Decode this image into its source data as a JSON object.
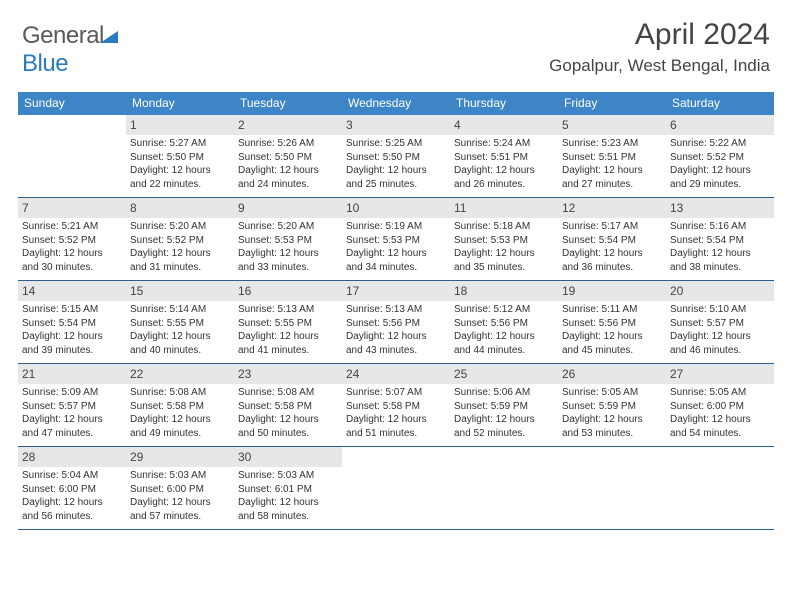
{
  "brand": {
    "part1": "General",
    "part2": "Blue"
  },
  "header": {
    "title": "April 2024",
    "location": "Gopalpur, West Bengal, India"
  },
  "colors": {
    "header_bg": "#3d85c6",
    "rule": "#2b5f8c",
    "daynum_bg": "#e7e7e7",
    "text": "#333333"
  },
  "dow": [
    "Sunday",
    "Monday",
    "Tuesday",
    "Wednesday",
    "Thursday",
    "Friday",
    "Saturday"
  ],
  "weeks": [
    [
      {
        "num": "",
        "sunrise": "",
        "sunset": "",
        "daylight1": "",
        "daylight2": ""
      },
      {
        "num": "1",
        "sunrise": "Sunrise: 5:27 AM",
        "sunset": "Sunset: 5:50 PM",
        "daylight1": "Daylight: 12 hours",
        "daylight2": "and 22 minutes."
      },
      {
        "num": "2",
        "sunrise": "Sunrise: 5:26 AM",
        "sunset": "Sunset: 5:50 PM",
        "daylight1": "Daylight: 12 hours",
        "daylight2": "and 24 minutes."
      },
      {
        "num": "3",
        "sunrise": "Sunrise: 5:25 AM",
        "sunset": "Sunset: 5:50 PM",
        "daylight1": "Daylight: 12 hours",
        "daylight2": "and 25 minutes."
      },
      {
        "num": "4",
        "sunrise": "Sunrise: 5:24 AM",
        "sunset": "Sunset: 5:51 PM",
        "daylight1": "Daylight: 12 hours",
        "daylight2": "and 26 minutes."
      },
      {
        "num": "5",
        "sunrise": "Sunrise: 5:23 AM",
        "sunset": "Sunset: 5:51 PM",
        "daylight1": "Daylight: 12 hours",
        "daylight2": "and 27 minutes."
      },
      {
        "num": "6",
        "sunrise": "Sunrise: 5:22 AM",
        "sunset": "Sunset: 5:52 PM",
        "daylight1": "Daylight: 12 hours",
        "daylight2": "and 29 minutes."
      }
    ],
    [
      {
        "num": "7",
        "sunrise": "Sunrise: 5:21 AM",
        "sunset": "Sunset: 5:52 PM",
        "daylight1": "Daylight: 12 hours",
        "daylight2": "and 30 minutes."
      },
      {
        "num": "8",
        "sunrise": "Sunrise: 5:20 AM",
        "sunset": "Sunset: 5:52 PM",
        "daylight1": "Daylight: 12 hours",
        "daylight2": "and 31 minutes."
      },
      {
        "num": "9",
        "sunrise": "Sunrise: 5:20 AM",
        "sunset": "Sunset: 5:53 PM",
        "daylight1": "Daylight: 12 hours",
        "daylight2": "and 33 minutes."
      },
      {
        "num": "10",
        "sunrise": "Sunrise: 5:19 AM",
        "sunset": "Sunset: 5:53 PM",
        "daylight1": "Daylight: 12 hours",
        "daylight2": "and 34 minutes."
      },
      {
        "num": "11",
        "sunrise": "Sunrise: 5:18 AM",
        "sunset": "Sunset: 5:53 PM",
        "daylight1": "Daylight: 12 hours",
        "daylight2": "and 35 minutes."
      },
      {
        "num": "12",
        "sunrise": "Sunrise: 5:17 AM",
        "sunset": "Sunset: 5:54 PM",
        "daylight1": "Daylight: 12 hours",
        "daylight2": "and 36 minutes."
      },
      {
        "num": "13",
        "sunrise": "Sunrise: 5:16 AM",
        "sunset": "Sunset: 5:54 PM",
        "daylight1": "Daylight: 12 hours",
        "daylight2": "and 38 minutes."
      }
    ],
    [
      {
        "num": "14",
        "sunrise": "Sunrise: 5:15 AM",
        "sunset": "Sunset: 5:54 PM",
        "daylight1": "Daylight: 12 hours",
        "daylight2": "and 39 minutes."
      },
      {
        "num": "15",
        "sunrise": "Sunrise: 5:14 AM",
        "sunset": "Sunset: 5:55 PM",
        "daylight1": "Daylight: 12 hours",
        "daylight2": "and 40 minutes."
      },
      {
        "num": "16",
        "sunrise": "Sunrise: 5:13 AM",
        "sunset": "Sunset: 5:55 PM",
        "daylight1": "Daylight: 12 hours",
        "daylight2": "and 41 minutes."
      },
      {
        "num": "17",
        "sunrise": "Sunrise: 5:13 AM",
        "sunset": "Sunset: 5:56 PM",
        "daylight1": "Daylight: 12 hours",
        "daylight2": "and 43 minutes."
      },
      {
        "num": "18",
        "sunrise": "Sunrise: 5:12 AM",
        "sunset": "Sunset: 5:56 PM",
        "daylight1": "Daylight: 12 hours",
        "daylight2": "and 44 minutes."
      },
      {
        "num": "19",
        "sunrise": "Sunrise: 5:11 AM",
        "sunset": "Sunset: 5:56 PM",
        "daylight1": "Daylight: 12 hours",
        "daylight2": "and 45 minutes."
      },
      {
        "num": "20",
        "sunrise": "Sunrise: 5:10 AM",
        "sunset": "Sunset: 5:57 PM",
        "daylight1": "Daylight: 12 hours",
        "daylight2": "and 46 minutes."
      }
    ],
    [
      {
        "num": "21",
        "sunrise": "Sunrise: 5:09 AM",
        "sunset": "Sunset: 5:57 PM",
        "daylight1": "Daylight: 12 hours",
        "daylight2": "and 47 minutes."
      },
      {
        "num": "22",
        "sunrise": "Sunrise: 5:08 AM",
        "sunset": "Sunset: 5:58 PM",
        "daylight1": "Daylight: 12 hours",
        "daylight2": "and 49 minutes."
      },
      {
        "num": "23",
        "sunrise": "Sunrise: 5:08 AM",
        "sunset": "Sunset: 5:58 PM",
        "daylight1": "Daylight: 12 hours",
        "daylight2": "and 50 minutes."
      },
      {
        "num": "24",
        "sunrise": "Sunrise: 5:07 AM",
        "sunset": "Sunset: 5:58 PM",
        "daylight1": "Daylight: 12 hours",
        "daylight2": "and 51 minutes."
      },
      {
        "num": "25",
        "sunrise": "Sunrise: 5:06 AM",
        "sunset": "Sunset: 5:59 PM",
        "daylight1": "Daylight: 12 hours",
        "daylight2": "and 52 minutes."
      },
      {
        "num": "26",
        "sunrise": "Sunrise: 5:05 AM",
        "sunset": "Sunset: 5:59 PM",
        "daylight1": "Daylight: 12 hours",
        "daylight2": "and 53 minutes."
      },
      {
        "num": "27",
        "sunrise": "Sunrise: 5:05 AM",
        "sunset": "Sunset: 6:00 PM",
        "daylight1": "Daylight: 12 hours",
        "daylight2": "and 54 minutes."
      }
    ],
    [
      {
        "num": "28",
        "sunrise": "Sunrise: 5:04 AM",
        "sunset": "Sunset: 6:00 PM",
        "daylight1": "Daylight: 12 hours",
        "daylight2": "and 56 minutes."
      },
      {
        "num": "29",
        "sunrise": "Sunrise: 5:03 AM",
        "sunset": "Sunset: 6:00 PM",
        "daylight1": "Daylight: 12 hours",
        "daylight2": "and 57 minutes."
      },
      {
        "num": "30",
        "sunrise": "Sunrise: 5:03 AM",
        "sunset": "Sunset: 6:01 PM",
        "daylight1": "Daylight: 12 hours",
        "daylight2": "and 58 minutes."
      },
      {
        "num": "",
        "sunrise": "",
        "sunset": "",
        "daylight1": "",
        "daylight2": ""
      },
      {
        "num": "",
        "sunrise": "",
        "sunset": "",
        "daylight1": "",
        "daylight2": ""
      },
      {
        "num": "",
        "sunrise": "",
        "sunset": "",
        "daylight1": "",
        "daylight2": ""
      },
      {
        "num": "",
        "sunrise": "",
        "sunset": "",
        "daylight1": "",
        "daylight2": ""
      }
    ]
  ]
}
